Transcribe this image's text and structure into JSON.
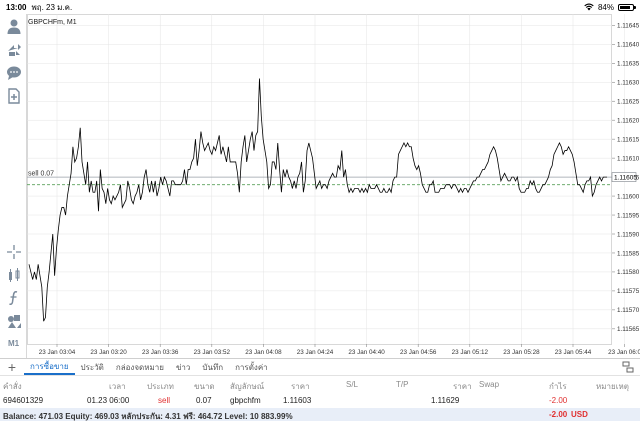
{
  "statusbar": {
    "time": "13:00",
    "date": "พฤ. 23 ม.ค.",
    "battery": "84%",
    "battery_level": 0.84
  },
  "toolbar": {
    "icons": [
      "account-icon",
      "trade-arrows-icon",
      "chat-icon",
      "new-order-icon",
      "crosshair-icon",
      "indicators-icon",
      "function-icon",
      "objects-icon"
    ],
    "timeframe": "M1"
  },
  "chart": {
    "symbol_label": "GBPCHFm, M1",
    "position_label": "sell 0.07",
    "bid_label": "1.11605",
    "colors": {
      "line": "#000000",
      "grid": "#e4e4e4",
      "position_line": "#5aa05a",
      "bid_line": "#9aa0a8"
    }
  },
  "chart_data": {
    "type": "line",
    "series": [
      {
        "values": [
          1.11582,
          1.1158,
          1.11578,
          1.1158,
          1.11578,
          1.11582,
          1.11579,
          1.11576,
          1.11567,
          1.11568,
          1.11576,
          1.1158,
          1.11585,
          1.1159,
          1.11579,
          1.11586,
          1.11591,
          1.11595,
          1.11597,
          1.11597,
          1.11595,
          1.116,
          1.11603,
          1.11606,
          1.11613,
          1.11609,
          1.1161,
          1.11613,
          1.11618,
          1.11609,
          1.11606,
          1.11603,
          1.11609,
          1.11601,
          1.11604,
          1.11601,
          1.11601,
          1.11604,
          1.11596,
          1.11607,
          1.11602,
          1.11601,
          1.11598,
          1.11602,
          1.11599,
          1.11598,
          1.116,
          1.11599,
          1.116,
          1.11601,
          1.11603,
          1.11597,
          1.11598,
          1.11599,
          1.11604,
          1.11602,
          1.11599,
          1.11598,
          1.116,
          1.11601,
          1.11603,
          1.11599,
          1.11601,
          1.11605,
          1.11607,
          1.11603,
          1.11601,
          1.11604,
          1.11601,
          1.11604,
          1.116,
          1.11602,
          1.11605,
          1.11603,
          1.11605,
          1.11604,
          1.11602,
          1.116,
          1.11604,
          1.11604,
          1.11603,
          1.11603,
          1.11603,
          1.11603,
          1.11604,
          1.11607,
          1.11603,
          1.11607,
          1.11607,
          1.11609,
          1.1161,
          1.11615,
          1.11608,
          1.11612,
          1.11617,
          1.11614,
          1.11612,
          1.11613,
          1.11614,
          1.11612,
          1.11611,
          1.11613,
          1.11612,
          1.11614,
          1.11616,
          1.11611,
          1.11613,
          1.11611,
          1.11609,
          1.11613,
          1.11609,
          1.11609,
          1.11609,
          1.11609,
          1.11606,
          1.11601,
          1.11609,
          1.11613,
          1.11616,
          1.11609,
          1.11612,
          1.11615,
          1.11617,
          1.11612,
          1.11616,
          1.11617,
          1.11631,
          1.11621,
          1.11615,
          1.11612,
          1.11609,
          1.11602,
          1.11603,
          1.11609,
          1.11609,
          1.11607,
          1.11614,
          1.11607,
          1.11601,
          1.11607,
          1.11605,
          1.11607,
          1.11605,
          1.11604,
          1.11602,
          1.11604,
          1.11602,
          1.11605,
          1.11606,
          1.11609,
          1.11601,
          1.11604,
          1.11612,
          1.11614,
          1.11612,
          1.1161,
          1.11606,
          1.11602,
          1.11603,
          1.11604,
          1.11602,
          1.11603,
          1.11603,
          1.11602,
          1.11604,
          1.11605,
          1.11606,
          1.11605,
          1.11605,
          1.11608,
          1.11607,
          1.11612,
          1.11605,
          1.11607,
          1.11603,
          1.11601,
          1.11602,
          1.11601,
          1.11602,
          1.11602,
          1.11602,
          1.11601,
          1.11602,
          1.11601,
          1.11602,
          1.11601,
          1.11603,
          1.11602,
          1.11602,
          1.11602,
          1.11603,
          1.11602,
          1.11601,
          1.11601,
          1.11602,
          1.11601,
          1.11601,
          1.11602,
          1.11601,
          1.11604,
          1.11605,
          1.11605,
          1.11611,
          1.11612,
          1.11613,
          1.11614,
          1.11613,
          1.11614,
          1.11613,
          1.11613,
          1.1161,
          1.11608,
          1.11607,
          1.11608,
          1.11606,
          1.11603,
          1.11602,
          1.11601,
          1.11601,
          1.11603,
          1.11603,
          1.11604,
          1.11601,
          1.11601,
          1.11601,
          1.11602,
          1.11602,
          1.11602,
          1.11603,
          1.11603,
          1.11603,
          1.11602,
          1.11603,
          1.11603,
          1.11602,
          1.11601,
          1.11602,
          1.11601,
          1.11602,
          1.11602,
          1.11601,
          1.11602,
          1.11603,
          1.11604,
          1.11604,
          1.11605,
          1.11605,
          1.11606,
          1.11607,
          1.11607,
          1.11608,
          1.11609,
          1.11611,
          1.11612,
          1.11613,
          1.11612,
          1.1161,
          1.11607,
          1.11604,
          1.11605,
          1.11606,
          1.11605,
          1.11604,
          1.11604,
          1.11605,
          1.11605,
          1.11604,
          1.11605,
          1.11602,
          1.11601,
          1.11601,
          1.11601,
          1.11602,
          1.11602,
          1.11604,
          1.11603,
          1.11604,
          1.11602,
          1.11601,
          1.11601,
          1.11602,
          1.11603,
          1.11603,
          1.11604,
          1.11605,
          1.11607,
          1.11608,
          1.11611,
          1.11612,
          1.11613,
          1.11614,
          1.11613,
          1.11611,
          1.11612,
          1.11612,
          1.11613,
          1.11612,
          1.11611,
          1.11609,
          1.11606,
          1.11603,
          1.11603,
          1.11602,
          1.11601,
          1.11603,
          1.11604,
          1.11604,
          1.11605,
          1.116,
          1.11601,
          1.11603,
          1.11604,
          1.11605,
          1.11604,
          1.11605,
          1.11605,
          1.11605
        ]
      }
    ],
    "y_ticks": [
      "1.11645",
      "1.11640",
      "1.11635",
      "1.11630",
      "1.11625",
      "1.11620",
      "1.11615",
      "1.11610",
      "1.11605",
      "1.11600",
      "1.11595",
      "1.11590",
      "1.11585",
      "1.11580",
      "1.11575",
      "1.11570",
      "1.11565"
    ],
    "x_ticks": [
      "23 Jan 03:04",
      "23 Jan 03:20",
      "23 Jan 03:36",
      "23 Jan 03:52",
      "23 Jan 04:08",
      "23 Jan 04:24",
      "23 Jan 04:40",
      "23 Jan 04:56",
      "23 Jan 05:12",
      "23 Jan 05:28",
      "23 Jan 05:44",
      "23 Jan 06:0"
    ],
    "ylim": [
      1.11561,
      1.11648
    ],
    "position_price": 1.11603,
    "bid_price": 1.11605,
    "grid": true
  },
  "tabs": [
    {
      "label": "การซื้อขาย",
      "active": true
    },
    {
      "label": "ประวัติ",
      "active": false
    },
    {
      "label": "กล่องจดหมาย",
      "active": false
    },
    {
      "label": "ข่าว",
      "active": false
    },
    {
      "label": "บันทึก",
      "active": false
    },
    {
      "label": "การตั้งค่า",
      "active": false
    }
  ],
  "positions": {
    "headers": {
      "order": "คำสั่ง",
      "time": "เวลา",
      "type": "ประเภท",
      "size": "ขนาด",
      "symbol": "สัญลักษณ์",
      "price": "ราคา",
      "sl": "S/L",
      "tp": "T/P",
      "current_price": "ราคา",
      "swap": "Swap",
      "profit": "กำไร",
      "comment": "หมายเหตุ"
    },
    "rows": [
      {
        "order": "694601329",
        "time": "01.23 06:00",
        "type": "sell",
        "size": "0.07",
        "symbol": "gbpchfm",
        "price": "1.11603",
        "sl": "",
        "tp": "",
        "current_price": "1.11629",
        "swap": "",
        "profit": "-2.00"
      }
    ],
    "summary": {
      "text": "Balance: 471.03 Equity: 469.03 หลักประกัน: 4.31 ฟรี: 464.72 Level: 10 883.99%",
      "profit": "-2.00",
      "currency": "USD"
    }
  }
}
